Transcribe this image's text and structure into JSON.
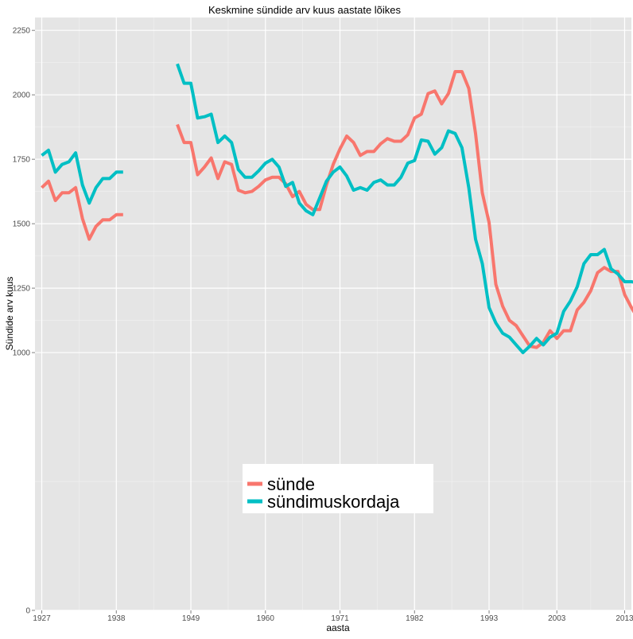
{
  "chart_data": {
    "type": "line",
    "title": "Keskmine sündide arv kuus aastate lõikes",
    "xlabel": "aasta",
    "ylabel": "Sündide arv kuus",
    "xlim": [
      1926,
      2014
    ],
    "ylim": [
      0,
      2300
    ],
    "x_ticks": [
      1927,
      1938,
      1949,
      1960,
      1971,
      1982,
      1993,
      2003,
      2013
    ],
    "y_ticks": [
      0,
      1000,
      1250,
      1500,
      1750,
      2000,
      2250
    ],
    "grid": true,
    "legend_position": "bottom-center",
    "series": [
      {
        "name": "sünde",
        "color": "#F8766D",
        "points": [
          [
            1927,
            1640
          ],
          [
            1928,
            1665
          ],
          [
            1929,
            1590
          ],
          [
            1930,
            1620
          ],
          [
            1931,
            1620
          ],
          [
            1932,
            1640
          ],
          [
            1933,
            1520
          ],
          [
            1934,
            1440
          ],
          [
            1935,
            1490
          ],
          [
            1936,
            1515
          ],
          [
            1937,
            1515
          ],
          [
            1938,
            1535
          ],
          [
            1939,
            1535
          ],
          null,
          [
            1947,
            1885
          ],
          [
            1948,
            1815
          ],
          [
            1949,
            1815
          ],
          [
            1950,
            1690
          ],
          [
            1951,
            1720
          ],
          [
            1952,
            1755
          ],
          [
            1953,
            1675
          ],
          [
            1954,
            1740
          ],
          [
            1955,
            1730
          ],
          [
            1956,
            1630
          ],
          [
            1957,
            1620
          ],
          [
            1958,
            1625
          ],
          [
            1959,
            1645
          ],
          [
            1960,
            1670
          ],
          [
            1961,
            1680
          ],
          [
            1962,
            1680
          ],
          [
            1963,
            1655
          ],
          [
            1964,
            1605
          ],
          [
            1965,
            1625
          ],
          [
            1966,
            1575
          ],
          [
            1967,
            1555
          ],
          [
            1968,
            1555
          ],
          [
            1969,
            1650
          ],
          [
            1970,
            1730
          ],
          [
            1971,
            1790
          ],
          [
            1972,
            1840
          ],
          [
            1973,
            1815
          ],
          [
            1974,
            1765
          ],
          [
            1975,
            1780
          ],
          [
            1976,
            1780
          ],
          [
            1977,
            1810
          ],
          [
            1978,
            1830
          ],
          [
            1979,
            1820
          ],
          [
            1980,
            1820
          ],
          [
            1981,
            1845
          ],
          [
            1982,
            1910
          ],
          [
            1983,
            1925
          ],
          [
            1984,
            2005
          ],
          [
            1985,
            2015
          ],
          [
            1986,
            1965
          ],
          [
            1987,
            2005
          ],
          [
            1988,
            2090
          ],
          [
            1989,
            2090
          ],
          [
            1990,
            2025
          ],
          [
            1991,
            1850
          ],
          [
            1992,
            1620
          ],
          [
            1993,
            1505
          ],
          [
            1994,
            1265
          ],
          [
            1995,
            1180
          ],
          [
            1996,
            1125
          ],
          [
            1997,
            1105
          ],
          [
            1998,
            1065
          ],
          [
            1999,
            1025
          ],
          [
            2000,
            1020
          ],
          [
            2001,
            1040
          ],
          [
            2002,
            1085
          ],
          [
            2003,
            1055
          ],
          [
            2004,
            1085
          ],
          [
            2005,
            1085
          ],
          [
            2006,
            1165
          ],
          [
            2007,
            1195
          ],
          [
            2008,
            1240
          ],
          [
            2009,
            1310
          ],
          [
            2010,
            1330
          ],
          [
            2011,
            1315
          ],
          [
            2012,
            1315
          ],
          [
            2013,
            1225
          ],
          [
            2014,
            1175
          ],
          [
            2015,
            1130
          ]
        ]
      },
      {
        "name": "sündimuskordaja",
        "color": "#00BFC4",
        "points": [
          [
            1927,
            1765
          ],
          [
            1928,
            1785
          ],
          [
            1929,
            1700
          ],
          [
            1930,
            1730
          ],
          [
            1931,
            1740
          ],
          [
            1932,
            1775
          ],
          [
            1933,
            1650
          ],
          [
            1934,
            1580
          ],
          [
            1935,
            1640
          ],
          [
            1936,
            1675
          ],
          [
            1937,
            1675
          ],
          [
            1938,
            1700
          ],
          [
            1939,
            1700
          ],
          null,
          [
            1947,
            2120
          ],
          [
            1948,
            2045
          ],
          [
            1949,
            2045
          ],
          [
            1950,
            1910
          ],
          [
            1951,
            1915
          ],
          [
            1952,
            1925
          ],
          [
            1953,
            1815
          ],
          [
            1954,
            1840
          ],
          [
            1955,
            1815
          ],
          [
            1956,
            1710
          ],
          [
            1957,
            1680
          ],
          [
            1958,
            1680
          ],
          [
            1959,
            1705
          ],
          [
            1960,
            1735
          ],
          [
            1961,
            1750
          ],
          [
            1962,
            1720
          ],
          [
            1963,
            1645
          ],
          [
            1964,
            1660
          ],
          [
            1965,
            1580
          ],
          [
            1966,
            1550
          ],
          [
            1967,
            1535
          ],
          [
            1968,
            1600
          ],
          [
            1969,
            1665
          ],
          [
            1970,
            1700
          ],
          [
            1971,
            1720
          ],
          [
            1972,
            1685
          ],
          [
            1973,
            1630
          ],
          [
            1974,
            1640
          ],
          [
            1975,
            1630
          ],
          [
            1976,
            1660
          ],
          [
            1977,
            1670
          ],
          [
            1978,
            1650
          ],
          [
            1979,
            1650
          ],
          [
            1980,
            1680
          ],
          [
            1981,
            1735
          ],
          [
            1982,
            1745
          ],
          [
            1983,
            1825
          ],
          [
            1984,
            1820
          ],
          [
            1985,
            1770
          ],
          [
            1986,
            1795
          ],
          [
            1987,
            1860
          ],
          [
            1988,
            1850
          ],
          [
            1989,
            1795
          ],
          [
            1990,
            1640
          ],
          [
            1991,
            1440
          ],
          [
            1992,
            1345
          ],
          [
            1993,
            1175
          ],
          [
            1994,
            1115
          ],
          [
            1995,
            1075
          ],
          [
            1996,
            1060
          ],
          [
            1997,
            1030
          ],
          [
            1998,
            1000
          ],
          [
            1999,
            1025
          ],
          [
            2000,
            1055
          ],
          [
            2001,
            1030
          ],
          [
            2002,
            1060
          ],
          [
            2003,
            1075
          ],
          [
            2004,
            1160
          ],
          [
            2005,
            1200
          ],
          [
            2006,
            1255
          ],
          [
            2007,
            1345
          ],
          [
            2008,
            1380
          ],
          [
            2009,
            1380
          ],
          [
            2010,
            1400
          ],
          [
            2011,
            1325
          ],
          [
            2012,
            1305
          ],
          [
            2013,
            1275
          ],
          [
            2014,
            1275
          ],
          [
            2015,
            1270
          ]
        ]
      }
    ]
  }
}
